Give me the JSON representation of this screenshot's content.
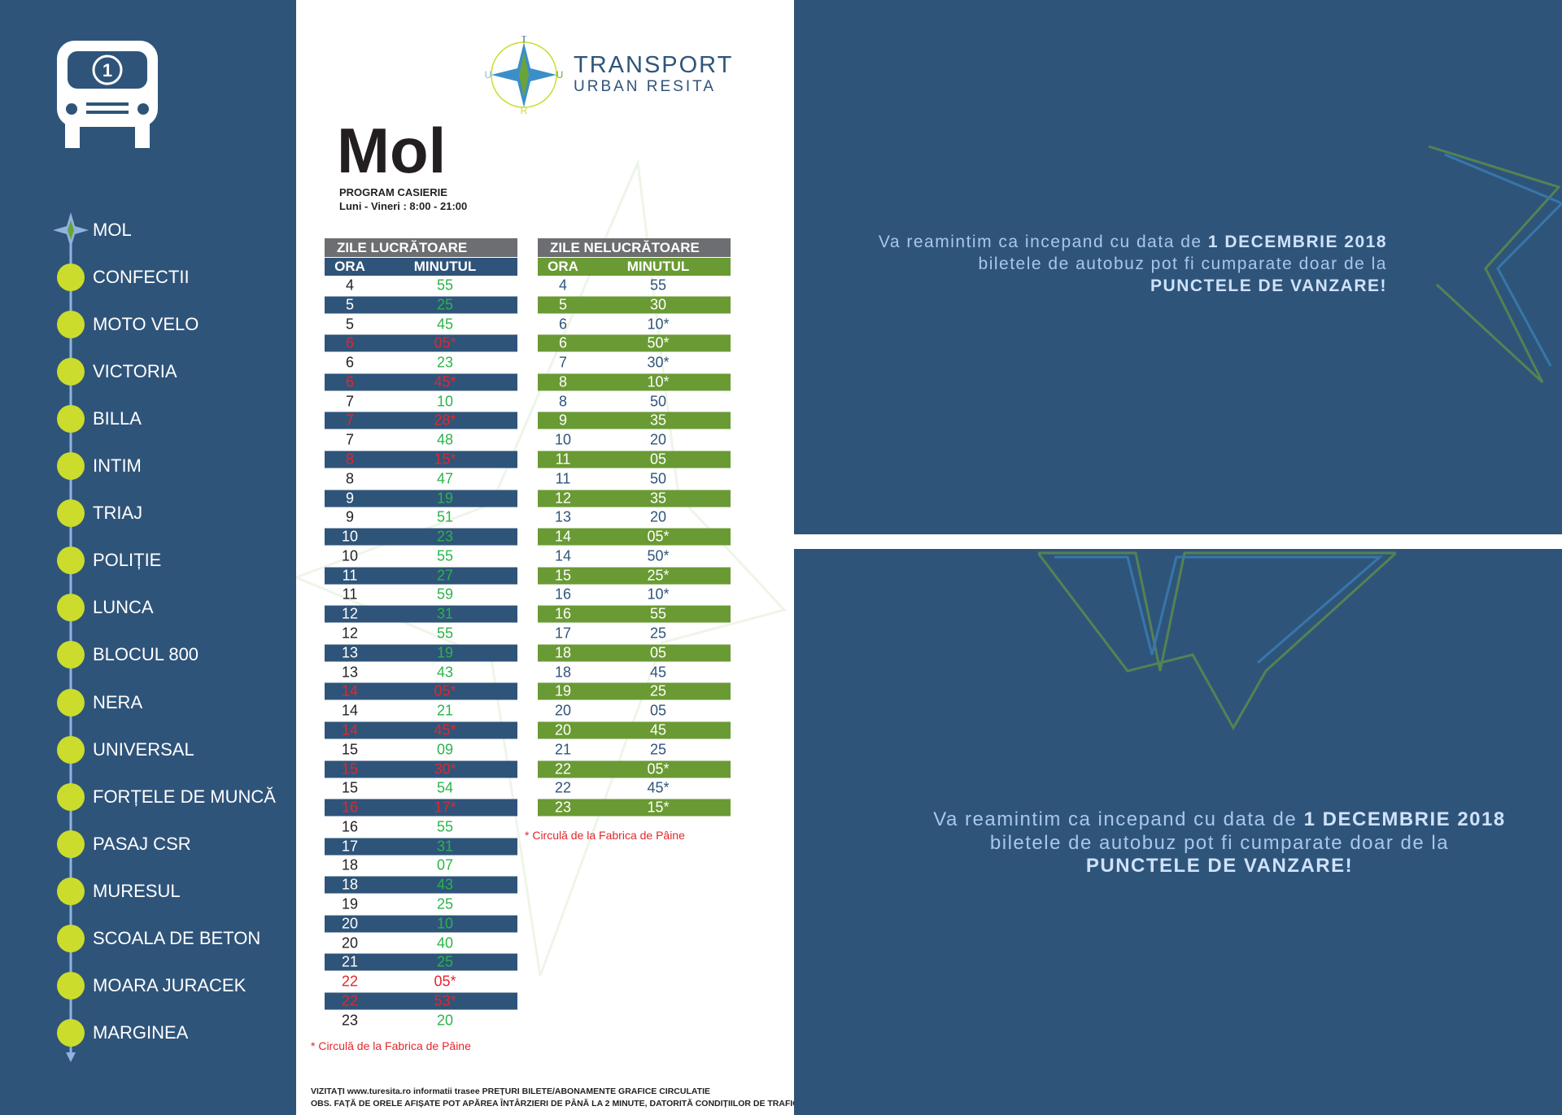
{
  "bus": {
    "line": "1"
  },
  "stops": [
    "MOL",
    "CONFECTII",
    "MOTO VELO",
    "VICTORIA",
    "BILLA",
    "INTIM",
    "TRIAJ",
    "POLIȚIE",
    "LUNCA",
    "BLOCUL 800",
    "NERA",
    "UNIVERSAL",
    "FORȚELE DE MUNCĂ",
    "PASAJ CSR",
    "MURESUL",
    "SCOALA DE BETON",
    "MOARA JURACEK",
    "MARGINEA"
  ],
  "logo": {
    "letters": [
      "T",
      "U",
      "R",
      "U"
    ],
    "line1": "TRANSPORT",
    "line2": "URBAN RESITA"
  },
  "header": {
    "title": "Mol",
    "cashier": "PROGRAM CASIERIE",
    "hours": "Luni - Vineri : 8:00 - 21:00"
  },
  "tables": [
    {
      "title": "ZILE LUCRĂTOARE",
      "columns": [
        "ORA",
        "MINUTUL"
      ],
      "note": "* Circulă de la Fabrica de Pâine",
      "rows": [
        [
          "4",
          "55"
        ],
        [
          "5",
          "25"
        ],
        [
          "5",
          "45"
        ],
        [
          "6",
          "05*"
        ],
        [
          "6",
          "23"
        ],
        [
          "6",
          "45*"
        ],
        [
          "7",
          "10"
        ],
        [
          "7",
          "28*"
        ],
        [
          "7",
          "48"
        ],
        [
          "8",
          "15*"
        ],
        [
          "8",
          "47"
        ],
        [
          "9",
          "19"
        ],
        [
          "9",
          "51"
        ],
        [
          "10",
          "23"
        ],
        [
          "10",
          "55"
        ],
        [
          "11",
          "27"
        ],
        [
          "11",
          "59"
        ],
        [
          "12",
          "31"
        ],
        [
          "12",
          "55"
        ],
        [
          "13",
          "19"
        ],
        [
          "13",
          "43"
        ],
        [
          "14",
          "05*"
        ],
        [
          "14",
          "21"
        ],
        [
          "14",
          "45*"
        ],
        [
          "15",
          "09"
        ],
        [
          "15",
          "30*"
        ],
        [
          "15",
          "54"
        ],
        [
          "16",
          "17*"
        ],
        [
          "16",
          "55"
        ],
        [
          "17",
          "31"
        ],
        [
          "18",
          "07"
        ],
        [
          "18",
          "43"
        ],
        [
          "19",
          "25"
        ],
        [
          "20",
          "10"
        ],
        [
          "20",
          "40"
        ],
        [
          "21",
          "25"
        ],
        [
          "22",
          "05*"
        ],
        [
          "22",
          "53*"
        ],
        [
          "23",
          "20"
        ]
      ]
    },
    {
      "title": "ZILE NELUCRĂTOARE",
      "columns": [
        "ORA",
        "MINUTUL"
      ],
      "note": "* Circulă de la Fabrica de Pâine",
      "rows": [
        [
          "4",
          "55"
        ],
        [
          "5",
          "30"
        ],
        [
          "6",
          "10*"
        ],
        [
          "6",
          "50*"
        ],
        [
          "7",
          "30*"
        ],
        [
          "8",
          "10*"
        ],
        [
          "8",
          "50"
        ],
        [
          "9",
          "35"
        ],
        [
          "10",
          "20"
        ],
        [
          "11",
          "05"
        ],
        [
          "11",
          "50"
        ],
        [
          "12",
          "35"
        ],
        [
          "13",
          "20"
        ],
        [
          "14",
          "05*"
        ],
        [
          "14",
          "50*"
        ],
        [
          "15",
          "25*"
        ],
        [
          "16",
          "10*"
        ],
        [
          "16",
          "55"
        ],
        [
          "17",
          "25"
        ],
        [
          "18",
          "05"
        ],
        [
          "18",
          "45"
        ],
        [
          "19",
          "25"
        ],
        [
          "20",
          "05"
        ],
        [
          "20",
          "45"
        ],
        [
          "21",
          "25"
        ],
        [
          "22",
          "05*"
        ],
        [
          "22",
          "45*"
        ],
        [
          "23",
          "15*"
        ]
      ]
    }
  ],
  "footer": [
    "VIZITAȚI www.turesita.ro informatii trasee PREȚURI BILETE/ABONAMENTE GRAFICE CIRCULATIE",
    "OBS. FAȚĂ DE ORELE AFIȘATE POT APĂREA ÎNTÂRZIERI DE PÂNĂ LA 2 MINUTE, DATORITĂ CONDIȚIILOR DE TRAFIC"
  ],
  "notices": [
    {
      "before": "Va reamintim ca incepand cu data de",
      "date": "1 DECEMBRIE 2018",
      "line2": "biletele de autobuz pot fi cumparate doar de la",
      "line3": "PUNCTELE DE VANZARE!"
    },
    {
      "before": "Va reamintim ca incepand cu data de",
      "date": "1 DECEMBRIE 2018",
      "line2": "biletele de autobuz pot fi cumparate doar de la",
      "line3": "PUNCTELE DE VANZARE!"
    }
  ]
}
